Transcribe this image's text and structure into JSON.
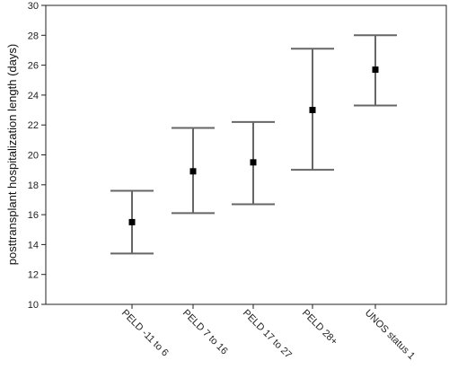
{
  "chart_data": {
    "type": "errorbar",
    "title": "",
    "xlabel": "",
    "ylabel": "posttransplant hospitalization length (days)",
    "ylim": [
      10,
      30
    ],
    "yticks": [
      10,
      12,
      14,
      16,
      18,
      20,
      22,
      24,
      26,
      28,
      30
    ],
    "grid": false,
    "legend": "none",
    "categories": [
      "PELD -11 to 6",
      "PELD 7 to 16",
      "PELD 17 to 27",
      "PELD 28+",
      "UNOS status 1"
    ],
    "values": [
      15.5,
      18.9,
      19.5,
      23.0,
      25.7
    ],
    "upper": [
      17.6,
      21.8,
      22.2,
      27.1,
      28.0
    ],
    "lower": [
      13.4,
      16.1,
      16.7,
      19.0,
      23.3
    ],
    "colors": {
      "errorbar": "#666666",
      "point": "#000000",
      "axis": "#222222"
    }
  }
}
